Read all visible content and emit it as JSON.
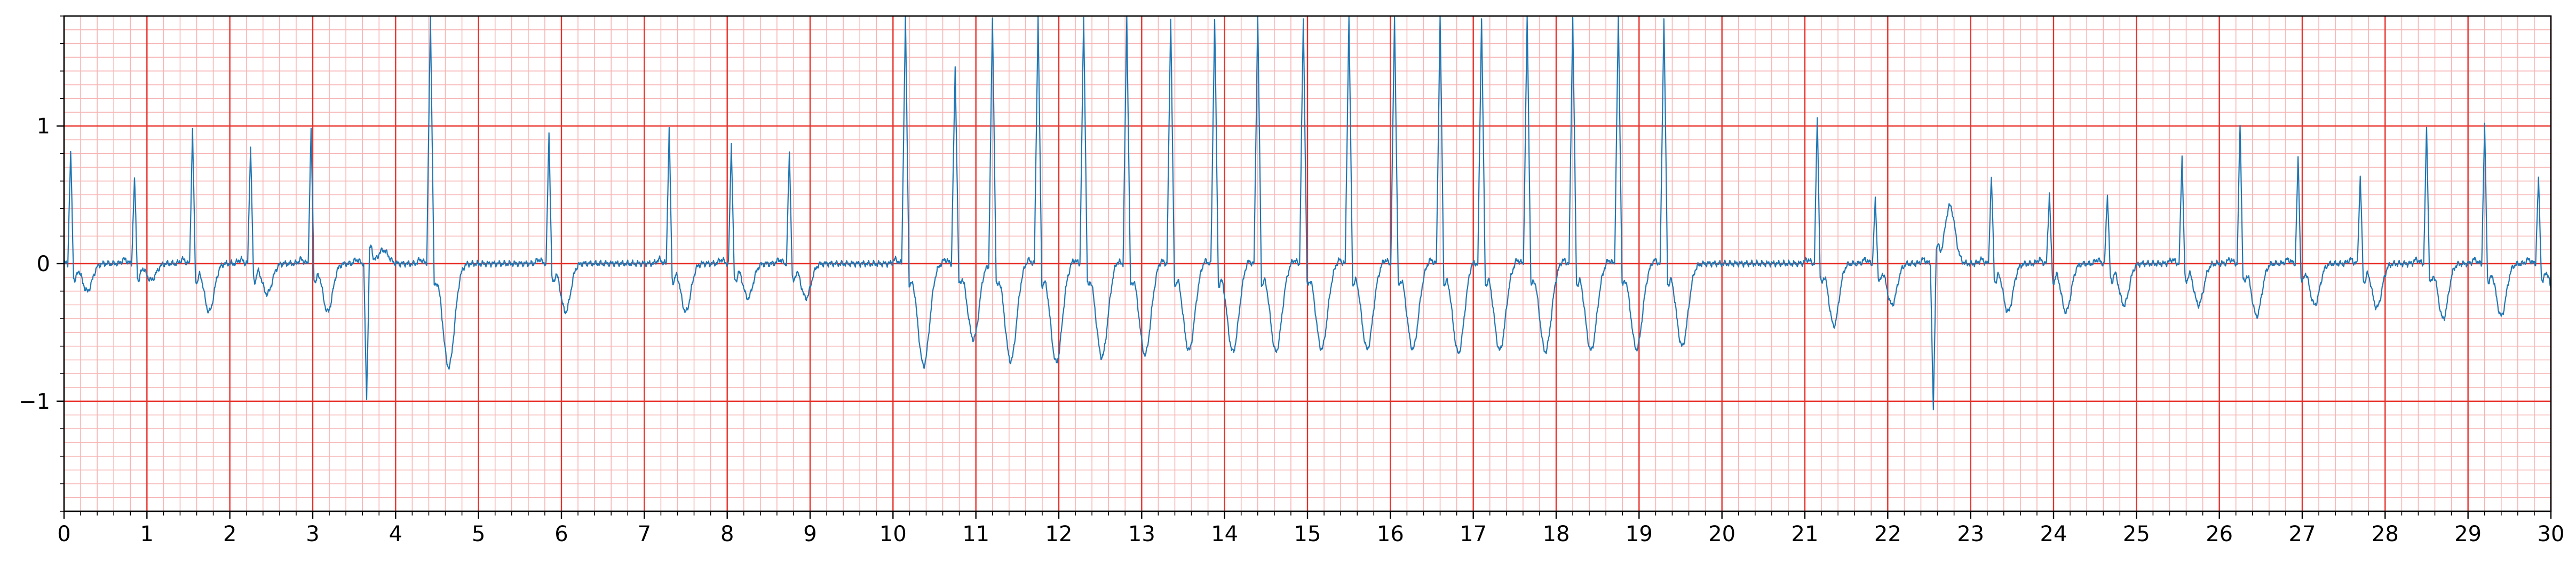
{
  "chart_data": {
    "type": "line",
    "title": "",
    "xlabel": "",
    "ylabel": "",
    "xlim": [
      0,
      30
    ],
    "ylim": [
      -1.8,
      1.8
    ],
    "x_ticks": [
      0,
      1,
      2,
      3,
      4,
      5,
      6,
      7,
      8,
      9,
      10,
      11,
      12,
      13,
      14,
      15,
      16,
      17,
      18,
      19,
      20,
      21,
      22,
      23,
      24,
      25,
      26,
      27,
      28,
      29,
      30
    ],
    "x_tick_labels": [
      "0",
      "1",
      "2",
      "3",
      "4",
      "5",
      "6",
      "7",
      "8",
      "9",
      "10",
      "11",
      "12",
      "13",
      "14",
      "15",
      "16",
      "17",
      "18",
      "19",
      "20",
      "21",
      "22",
      "23",
      "24",
      "25",
      "26",
      "27",
      "28",
      "29",
      "30"
    ],
    "y_ticks": [
      -1,
      0,
      1
    ],
    "y_tick_labels": [
      "−1",
      "0",
      "1"
    ],
    "grid": {
      "major": true,
      "minor": true,
      "major_color": "#e8302a",
      "minor_color": "#f7b4b4",
      "minor_step_x": 0.2,
      "minor_step_y": 0.1
    },
    "trace_color": "#1f77b4",
    "beats": [
      [
        0.08,
        0.82,
        -0.2
      ],
      [
        0.85,
        0.63,
        -0.12
      ],
      [
        1.55,
        0.98,
        -0.35
      ],
      [
        2.25,
        0.86,
        -0.22
      ],
      [
        2.98,
        0.98,
        -0.35
      ],
      [
        3.65,
        -1.0,
        0.1
      ],
      [
        4.42,
        1.8,
        -0.75
      ],
      [
        5.85,
        0.95,
        -0.35
      ],
      [
        7.3,
        0.99,
        -0.35
      ],
      [
        8.05,
        0.88,
        -0.25
      ],
      [
        8.75,
        0.82,
        -0.25
      ],
      [
        10.15,
        1.8,
        -0.74
      ],
      [
        10.75,
        1.43,
        -0.55
      ],
      [
        11.2,
        1.8,
        -0.71
      ],
      [
        11.75,
        1.8,
        -0.72
      ],
      [
        12.3,
        1.8,
        -0.68
      ],
      [
        12.82,
        1.8,
        -0.66
      ],
      [
        13.35,
        1.8,
        -0.63
      ],
      [
        13.88,
        1.8,
        -0.64
      ],
      [
        14.4,
        1.8,
        -0.64
      ],
      [
        14.95,
        1.8,
        -0.62
      ],
      [
        15.5,
        1.8,
        -0.62
      ],
      [
        16.05,
        1.8,
        -0.62
      ],
      [
        16.6,
        1.8,
        -0.65
      ],
      [
        17.1,
        1.8,
        -0.63
      ],
      [
        17.65,
        1.8,
        -0.64
      ],
      [
        18.2,
        1.8,
        -0.63
      ],
      [
        18.75,
        1.8,
        -0.62
      ],
      [
        19.3,
        1.8,
        -0.6
      ],
      [
        21.15,
        1.08,
        -0.45
      ],
      [
        21.85,
        0.47,
        -0.3
      ],
      [
        22.55,
        -1.08,
        0.42
      ],
      [
        23.25,
        0.64,
        -0.35
      ],
      [
        23.95,
        0.52,
        -0.35
      ],
      [
        24.65,
        0.52,
        -0.3
      ],
      [
        25.55,
        0.79,
        -0.3
      ],
      [
        26.25,
        1.02,
        -0.38
      ],
      [
        26.95,
        0.77,
        -0.3
      ],
      [
        27.7,
        0.64,
        -0.32
      ],
      [
        28.5,
        0.99,
        -0.4
      ],
      [
        29.2,
        1.01,
        -0.38
      ],
      [
        29.85,
        0.62,
        -0.25
      ]
    ]
  }
}
